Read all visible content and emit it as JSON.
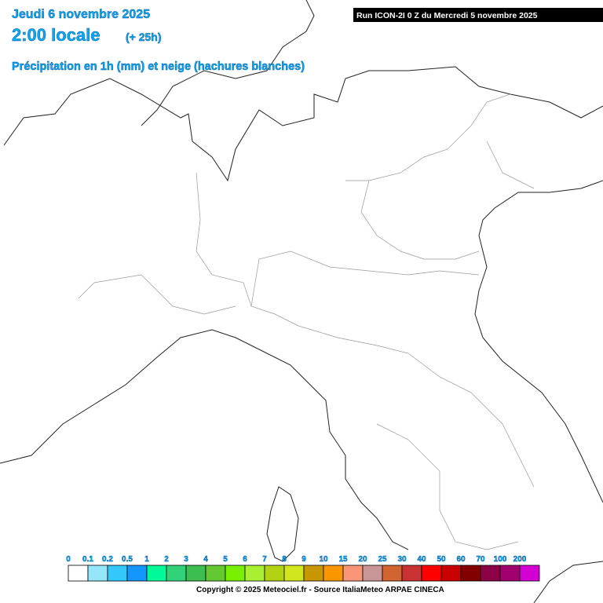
{
  "header": {
    "date": "Jeudi 6 novembre 2025",
    "time": "2:00 locale",
    "offset": "(+ 25h)",
    "subtitle": "Précipitation en 1h (mm) et neige (hachures blanches)",
    "run": "Run ICON-2I 0 Z du Mercredi 5 novembre 2025"
  },
  "legend": {
    "items": [
      {
        "value": 0,
        "color": "#ffffff"
      },
      {
        "value": 0.1,
        "color": "#96e6fa"
      },
      {
        "value": 0.2,
        "color": "#32c8fa"
      },
      {
        "value": 0.5,
        "color": "#1496ff"
      },
      {
        "value": 1,
        "color": "#00fa9a"
      },
      {
        "value": 2,
        "color": "#32d278"
      },
      {
        "value": 3,
        "color": "#3cbe50"
      },
      {
        "value": 4,
        "color": "#64c832"
      },
      {
        "value": 5,
        "color": "#78f000"
      },
      {
        "value": 6,
        "color": "#aaf032"
      },
      {
        "value": 7,
        "color": "#b4d214"
      },
      {
        "value": 8,
        "color": "#d2e61e"
      },
      {
        "value": 9,
        "color": "#c89600"
      },
      {
        "value": 10,
        "color": "#fa9600"
      },
      {
        "value": 15,
        "color": "#fa9678"
      },
      {
        "value": 20,
        "color": "#c89696"
      },
      {
        "value": 25,
        "color": "#d26432"
      },
      {
        "value": 30,
        "color": "#c83232"
      },
      {
        "value": 40,
        "color": "#ff0000"
      },
      {
        "value": 50,
        "color": "#c80000"
      },
      {
        "value": 60,
        "color": "#820000"
      },
      {
        "value": 70,
        "color": "#8c0046"
      },
      {
        "value": 100,
        "color": "#a0006e"
      },
      {
        "value": 200,
        "color": "#d200d2"
      }
    ]
  },
  "footer": {
    "copyright": "Copyright © 2025 Meteociel.fr - Source ItaliaMeteo ARPAE CINECA"
  }
}
